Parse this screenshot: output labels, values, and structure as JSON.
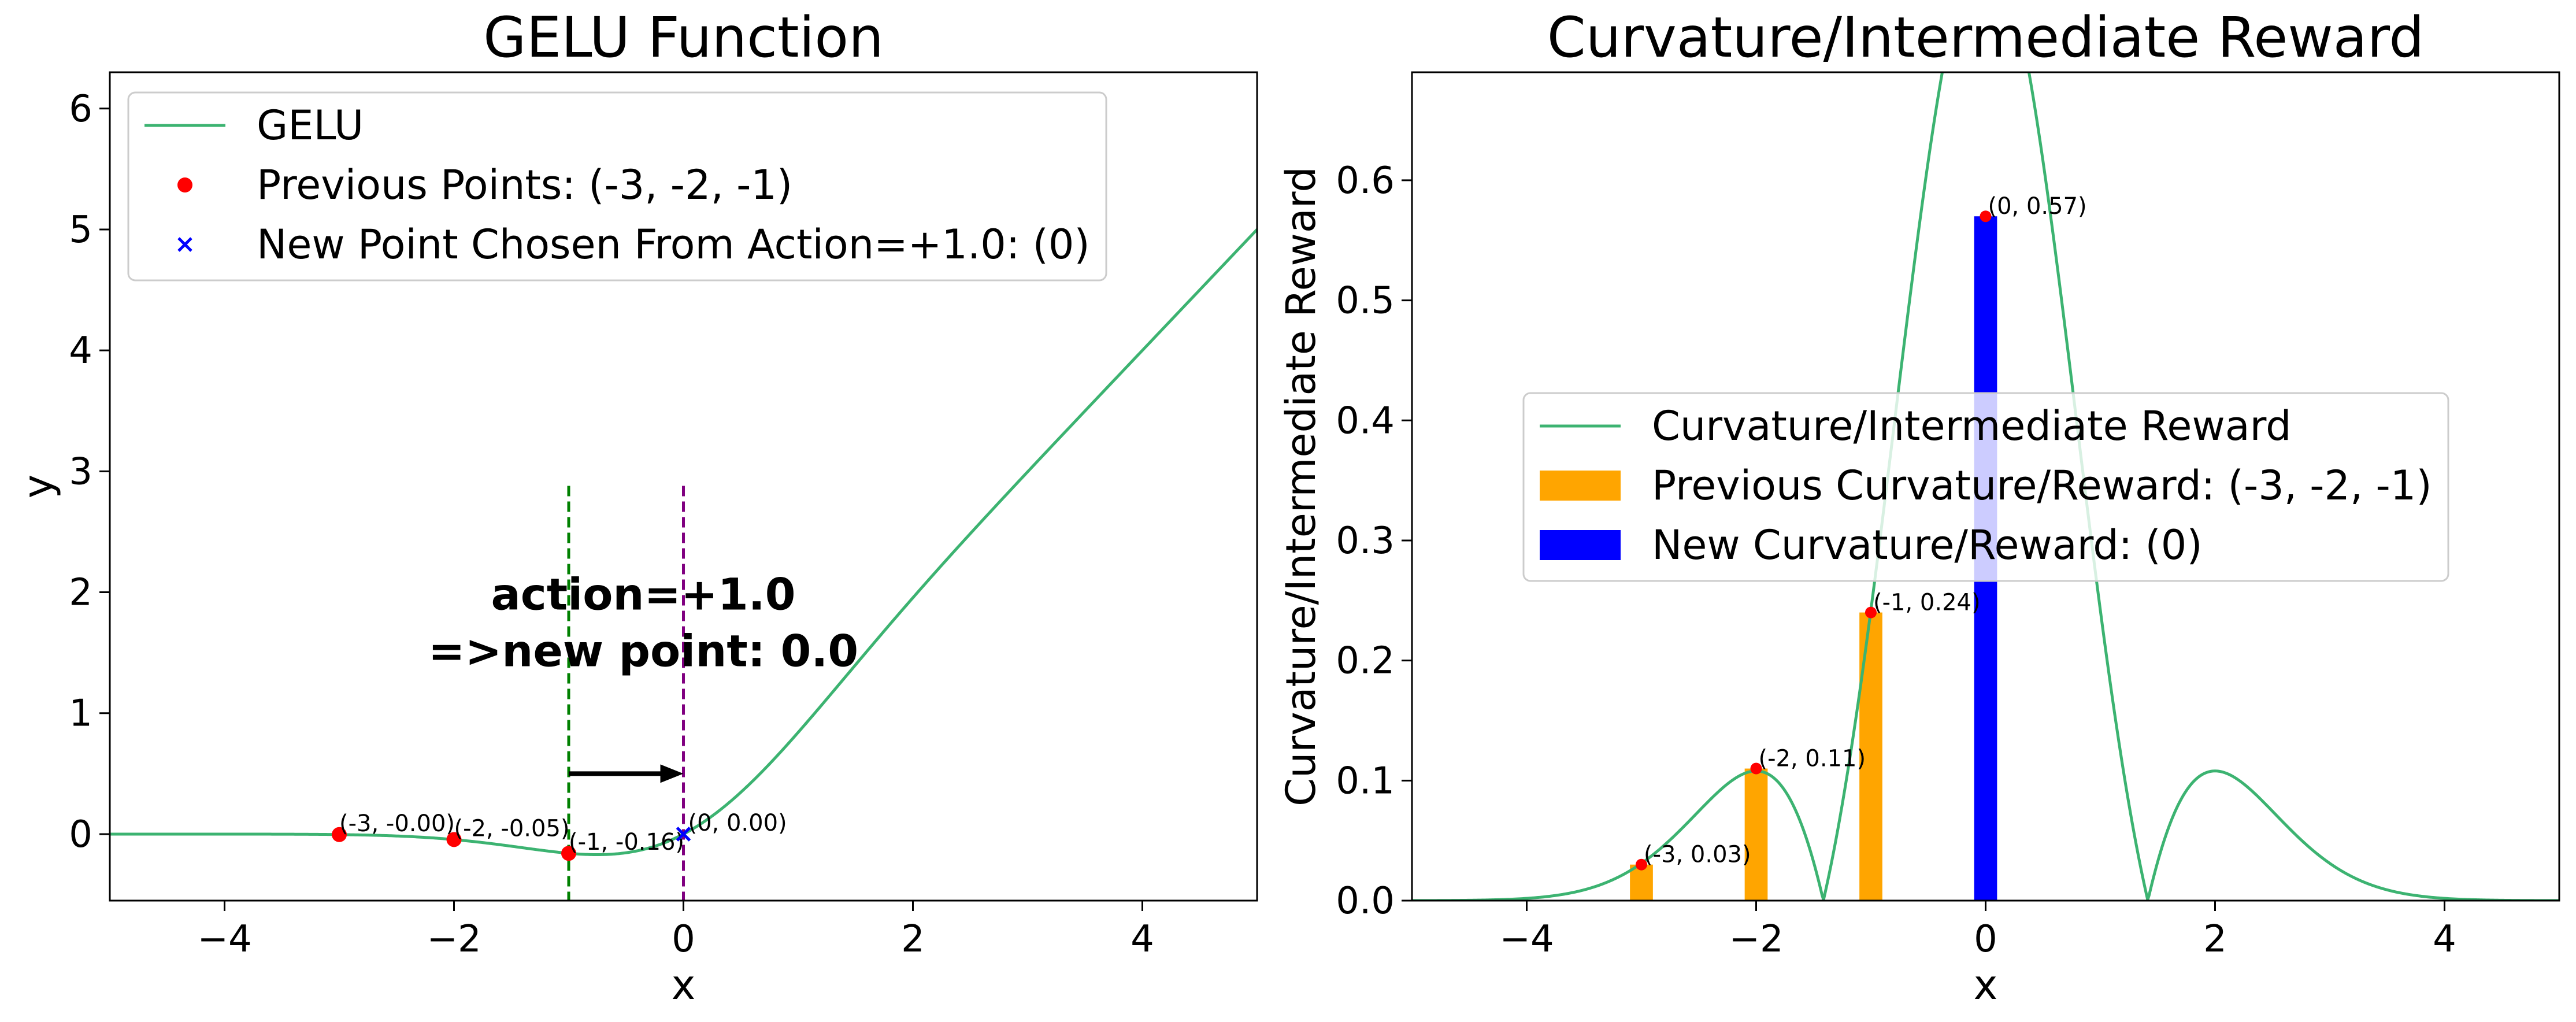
{
  "chart_data": [
    {
      "type": "line",
      "title": "GELU Function",
      "xlabel": "x",
      "ylabel": "y",
      "xlim": [
        -5,
        5
      ],
      "ylim": [
        -0.55,
        6.3
      ],
      "xticks": [
        -4,
        -2,
        0,
        2,
        4
      ],
      "yticks": [
        0,
        1,
        2,
        3,
        4,
        5,
        6
      ],
      "grid": false,
      "legend_position": "top-left",
      "colors": {
        "curve": "#3cb371",
        "previous": "#ff0000",
        "new": "#0000ff",
        "vline_prev": "#008000",
        "vline_new": "#800080",
        "arrow": "#000000"
      },
      "series": [
        {
          "name": "GELU",
          "kind": "line",
          "function": "gelu"
        },
        {
          "name": "Previous Points: (-3, -2, -1)",
          "kind": "scatter",
          "marker": "circle",
          "points": [
            {
              "x": -3,
              "y": -0.004,
              "label": "(-3, -0.00)"
            },
            {
              "x": -2,
              "y": -0.045,
              "label": "(-2, -0.05)"
            },
            {
              "x": -1,
              "y": -0.159,
              "label": "(-1, -0.16)"
            }
          ]
        },
        {
          "name": "New Point Chosen From Action=+1.0: (0)",
          "kind": "scatter",
          "marker": "x",
          "points": [
            {
              "x": 0,
              "y": 0.0,
              "label": "(0, 0.00)"
            }
          ]
        }
      ],
      "vlines": [
        {
          "x": -1,
          "ymin": -0.55,
          "ymax": 2.88
        },
        {
          "x": 0,
          "ymin": -0.55,
          "ymax": 2.88
        }
      ],
      "arrow": {
        "x_from": -1,
        "x_to": 0,
        "y": 0.5
      },
      "annotation": {
        "line1": "action=+1.0",
        "line2": "=>new point: 0.0",
        "x": -0.35,
        "y": 1.8
      }
    },
    {
      "type": "bar",
      "title": "Curvature/Intermediate Reward",
      "xlabel": "x",
      "ylabel": "Curvature/Intermediate Reward",
      "xlim": [
        -5,
        5
      ],
      "ylim": [
        0,
        0.69
      ],
      "xticks": [
        -4,
        -2,
        0,
        2,
        4
      ],
      "yticks": [
        0.0,
        0.1,
        0.2,
        0.3,
        0.4,
        0.5,
        0.6
      ],
      "ytick_labels": [
        "0.0",
        "0.1",
        "0.2",
        "0.3",
        "0.4",
        "0.5",
        "0.6"
      ],
      "grid": false,
      "legend_position": "center",
      "colors": {
        "curve": "#3cb371",
        "previous": "#ffa500",
        "new": "#0000ff",
        "dot": "#ff0000"
      },
      "series": [
        {
          "name": "Curvature/Intermediate Reward",
          "kind": "line",
          "function": "abs_gelu_second_derivative"
        },
        {
          "name": "Previous Curvature/Reward: (-3, -2, -1)",
          "kind": "bar",
          "points": [
            {
              "x": -3,
              "y": 0.03,
              "label": "(-3, 0.03)"
            },
            {
              "x": -2,
              "y": 0.11,
              "label": "(-2, 0.11)"
            },
            {
              "x": -1,
              "y": 0.24,
              "label": "(-1, 0.24)"
            }
          ]
        },
        {
          "name": "New Curvature/Reward: (0)",
          "kind": "bar",
          "points": [
            {
              "x": 0,
              "y": 0.57,
              "label": "(0, 0.57)"
            }
          ]
        }
      ],
      "bar_width": 0.2
    }
  ]
}
